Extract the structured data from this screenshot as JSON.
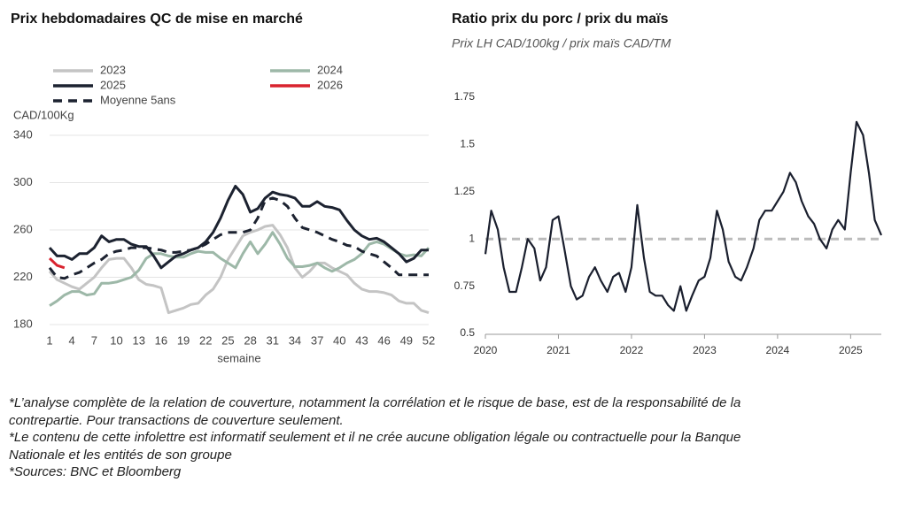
{
  "chart_data": [
    {
      "type": "line",
      "title": "Prix hebdomadaires QC de mise en marché",
      "ylabel": "CAD/100Kg",
      "xlabel": "semaine",
      "x": [
        1,
        2,
        3,
        4,
        5,
        6,
        7,
        8,
        9,
        10,
        11,
        12,
        13,
        14,
        15,
        16,
        17,
        18,
        19,
        20,
        21,
        22,
        23,
        24,
        25,
        26,
        27,
        28,
        29,
        30,
        31,
        32,
        33,
        34,
        35,
        36,
        37,
        38,
        39,
        40,
        41,
        42,
        43,
        44,
        45,
        46,
        47,
        48,
        49,
        50,
        51,
        52
      ],
      "xlim": [
        1,
        52
      ],
      "xticks": [
        1,
        4,
        7,
        10,
        13,
        16,
        19,
        22,
        25,
        28,
        31,
        34,
        37,
        40,
        43,
        46,
        49,
        52
      ],
      "ylim": [
        180,
        340
      ],
      "yticks": [
        180,
        220,
        260,
        300,
        340
      ],
      "grid": true,
      "series": [
        {
          "name": "2023",
          "color": "#c4c4c4",
          "values": [
            225,
            218,
            215,
            212,
            210,
            215,
            220,
            228,
            235,
            236,
            236,
            228,
            218,
            214,
            213,
            211,
            190,
            192,
            194,
            197,
            198,
            205,
            210,
            220,
            235,
            245,
            255,
            258,
            260,
            263,
            264,
            256,
            245,
            228,
            220,
            225,
            232,
            232,
            228,
            225,
            222,
            215,
            210,
            208,
            208,
            207,
            205,
            200,
            198,
            198,
            192,
            190
          ]
        },
        {
          "name": "2024",
          "color": "#9db8a8",
          "values": [
            196,
            200,
            205,
            208,
            208,
            205,
            206,
            215,
            215,
            216,
            218,
            220,
            226,
            236,
            240,
            240,
            238,
            237,
            237,
            240,
            242,
            241,
            241,
            236,
            232,
            228,
            240,
            250,
            240,
            248,
            258,
            248,
            236,
            229,
            229,
            230,
            232,
            228,
            225,
            228,
            232,
            235,
            240,
            248,
            250,
            248,
            244,
            240,
            238,
            239,
            238,
            245
          ]
        },
        {
          "name": "2025",
          "color": "#1c2230",
          "values": [
            245,
            238,
            238,
            235,
            240,
            240,
            245,
            255,
            250,
            252,
            252,
            248,
            246,
            246,
            238,
            228,
            233,
            238,
            240,
            243,
            245,
            250,
            258,
            270,
            285,
            297,
            290,
            275,
            278,
            287,
            292,
            290,
            289,
            287,
            280,
            280,
            284,
            280,
            279,
            277,
            268,
            260,
            255,
            252,
            253,
            250,
            245,
            240,
            233,
            236,
            243,
            243
          ]
        },
        {
          "name": "2026",
          "color": "#d9232e",
          "values": [
            236,
            230,
            228,
            null,
            null,
            null,
            null,
            null,
            null,
            null,
            null,
            null,
            null,
            null,
            null,
            null,
            null,
            null,
            null,
            null,
            null,
            null,
            null,
            null,
            null,
            null,
            null,
            null,
            null,
            null,
            null,
            null,
            null,
            null,
            null,
            null,
            null,
            null,
            null,
            null,
            null,
            null,
            null,
            null,
            null,
            null,
            null,
            null,
            null,
            null,
            null,
            null
          ]
        },
        {
          "name": "Moyenne 5ans",
          "color": "#1c2230",
          "dashed": true,
          "values": [
            228,
            220,
            219,
            222,
            224,
            228,
            232,
            235,
            240,
            242,
            243,
            245,
            245,
            245,
            244,
            243,
            241,
            241,
            242,
            243,
            245,
            248,
            252,
            256,
            258,
            258,
            258,
            260,
            270,
            285,
            287,
            285,
            280,
            270,
            262,
            260,
            258,
            255,
            252,
            250,
            247,
            246,
            242,
            240,
            238,
            233,
            228,
            222,
            222,
            222,
            222,
            222
          ]
        }
      ]
    },
    {
      "type": "line",
      "title": "Ratio prix du porc / prix du maïs",
      "subtitle": "Prix LH CAD/100kg / prix maïs CAD/TM",
      "x": [
        2020,
        2020.08,
        2020.17,
        2020.25,
        2020.33,
        2020.42,
        2020.5,
        2020.58,
        2020.67,
        2020.75,
        2020.83,
        2020.92,
        2021,
        2021.08,
        2021.17,
        2021.25,
        2021.33,
        2021.42,
        2021.5,
        2021.58,
        2021.67,
        2021.75,
        2021.83,
        2021.92,
        2022,
        2022.08,
        2022.17,
        2022.25,
        2022.33,
        2022.42,
        2022.5,
        2022.58,
        2022.67,
        2022.75,
        2022.83,
        2022.92,
        2023,
        2023.08,
        2023.17,
        2023.25,
        2023.33,
        2023.42,
        2023.5,
        2023.58,
        2023.67,
        2023.75,
        2023.83,
        2023.92,
        2024,
        2024.08,
        2024.17,
        2024.25,
        2024.33,
        2024.42,
        2024.5,
        2024.58,
        2024.67,
        2024.75,
        2024.83,
        2024.92,
        2025,
        2025.08,
        2025.17,
        2025.25,
        2025.33,
        2025.42
      ],
      "xlim": [
        2020,
        2025.42
      ],
      "xticks": [
        2020,
        2021,
        2022,
        2023,
        2024,
        2025
      ],
      "ylim": [
        0.5,
        1.75
      ],
      "yticks": [
        0.5,
        0.75,
        1,
        1.25,
        1.5,
        1.75
      ],
      "reference_line": 1,
      "series": [
        {
          "name": "Ratio",
          "color": "#1a1f2e",
          "values": [
            0.92,
            1.15,
            1.05,
            0.85,
            0.72,
            0.72,
            0.85,
            1.0,
            0.95,
            0.78,
            0.85,
            1.1,
            1.12,
            0.95,
            0.75,
            0.68,
            0.7,
            0.8,
            0.85,
            0.78,
            0.72,
            0.8,
            0.82,
            0.72,
            0.85,
            1.18,
            0.9,
            0.72,
            0.7,
            0.7,
            0.65,
            0.62,
            0.75,
            0.62,
            0.7,
            0.78,
            0.8,
            0.9,
            1.15,
            1.05,
            0.88,
            0.8,
            0.78,
            0.85,
            0.95,
            1.1,
            1.15,
            1.15,
            1.2,
            1.25,
            1.35,
            1.3,
            1.2,
            1.12,
            1.08,
            1.0,
            0.95,
            1.05,
            1.1,
            1.05,
            1.35,
            1.62,
            1.55,
            1.35,
            1.1,
            1.02
          ]
        }
      ]
    }
  ],
  "footnotes": [
    "*L’analyse complète de la relation de couverture, notamment la corrélation et le risque de base, est de la responsabilité de la contrepartie. Pour transactions de couverture seulement.",
    "*Le contenu de cette infolettre est informatif seulement et il ne crée aucune obligation légale ou contractuelle pour la Banque Nationale et les entités de son groupe",
    "*Sources: BNC et Bloomberg"
  ]
}
